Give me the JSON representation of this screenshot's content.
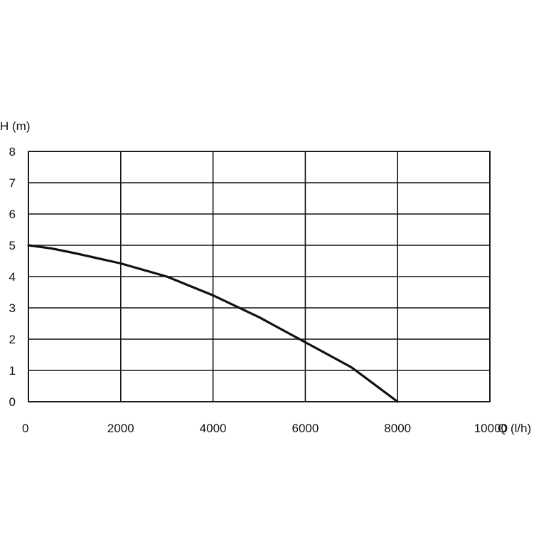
{
  "chart_data": {
    "type": "line",
    "title": "",
    "xlabel": "Q (l/h)",
    "ylabel": "H (m)",
    "xlim": [
      0,
      10000
    ],
    "ylim": [
      0,
      8
    ],
    "x_ticks": [
      "0",
      "2000",
      "4000",
      "6000",
      "8000",
      "10000"
    ],
    "y_ticks": [
      "0",
      "1",
      "2",
      "3",
      "4",
      "5",
      "6",
      "7",
      "8"
    ],
    "grid": true,
    "legend": "none",
    "colors": {
      "line": "#111111",
      "grid": "#111111"
    },
    "series": [
      {
        "x": [
          0,
          500,
          1000,
          2000,
          3000,
          4000,
          5000,
          6000,
          7000,
          7500,
          8000
        ],
        "y": [
          5.0,
          4.9,
          4.75,
          4.42,
          4.0,
          3.4,
          2.7,
          1.9,
          1.1,
          0.55,
          0.0
        ]
      }
    ]
  }
}
